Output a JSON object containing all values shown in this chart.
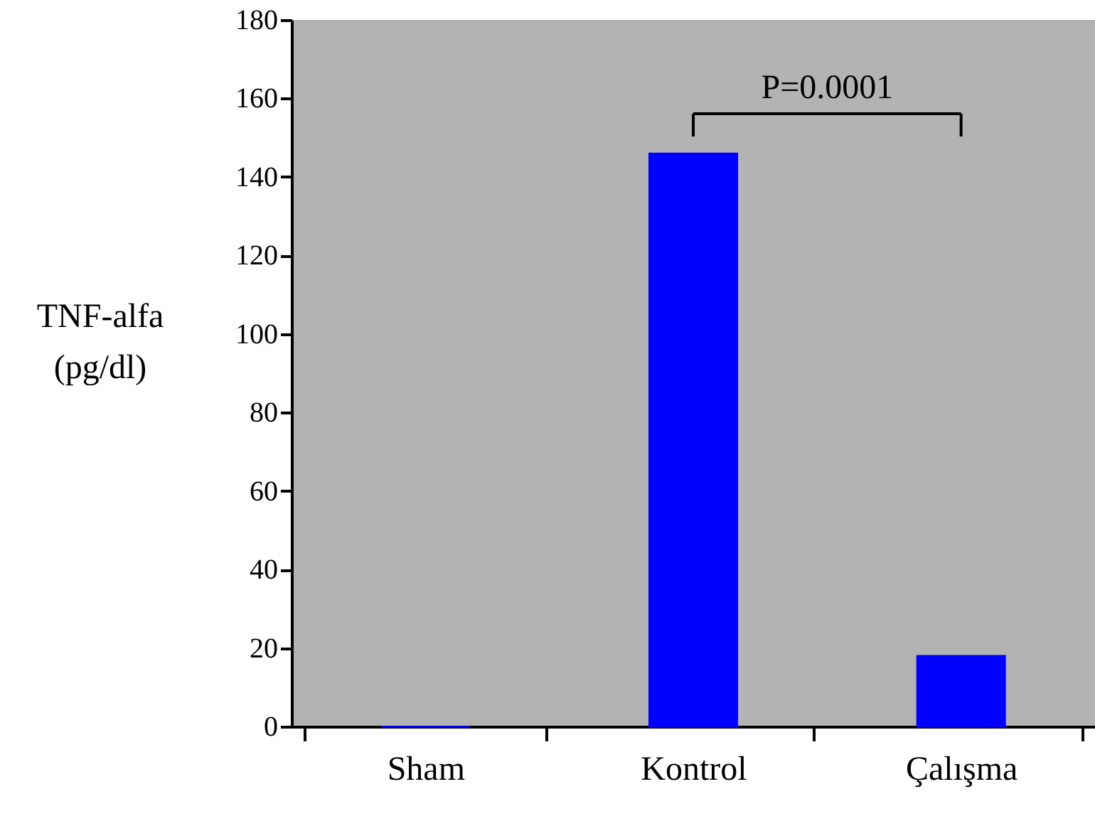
{
  "chart_data": {
    "type": "bar",
    "categories": [
      "Sham",
      "Kontrol",
      "Çalışma"
    ],
    "values": [
      0,
      146,
      18
    ],
    "color": "#0000ff",
    "ylabel": "TNF-alfa\n(pg/dl)",
    "ylim": [
      0,
      180
    ],
    "yticks": [
      0,
      20,
      40,
      60,
      80,
      100,
      120,
      140,
      160,
      180
    ],
    "grid": false,
    "annotations": [
      "P=0.0001"
    ]
  }
}
